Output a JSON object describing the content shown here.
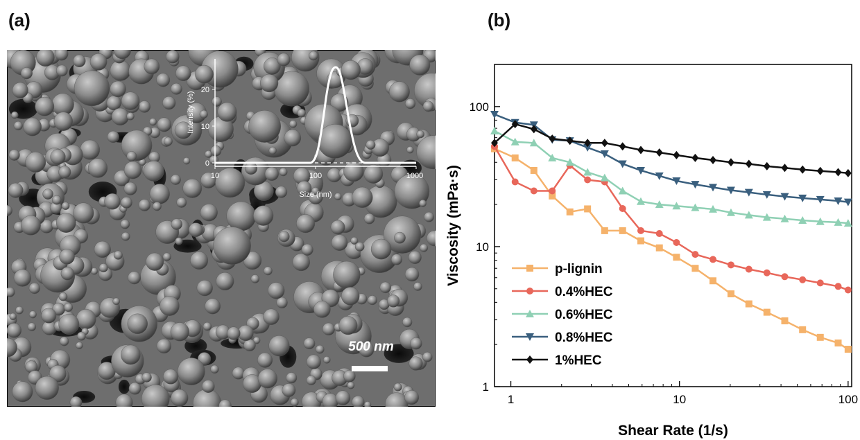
{
  "panels": {
    "a": "(a)",
    "b": "(b)"
  },
  "sem": {
    "scale_bar_label": "500 nm",
    "inset": {
      "xlabel": "Size (nm)",
      "ylabel": "Intensity (%)",
      "x_ticks": [
        "10",
        "100",
        "1000"
      ],
      "y_ticks": [
        "0",
        "10",
        "20"
      ]
    }
  },
  "chart_data": {
    "type": "line",
    "xlabel": "Shear Rate (1/s)",
    "ylabel": "Viscosity (mPa·s)",
    "xscale": "log",
    "yscale": "log",
    "xlim": [
      0.8,
      105
    ],
    "ylim": [
      1,
      200
    ],
    "x_ticks": [
      "1",
      "10",
      "100"
    ],
    "y_ticks": [
      "1",
      "10",
      "100"
    ],
    "legend_position": "bottom-left",
    "x": [
      0.8,
      1.06,
      1.37,
      1.76,
      2.24,
      2.85,
      3.6,
      4.6,
      5.9,
      7.6,
      9.6,
      12.4,
      15.8,
      20.2,
      25.8,
      33,
      42.1,
      53.7,
      68.4,
      87.3,
      100
    ],
    "series": [
      {
        "name": "p-lignin",
        "color": "#f5b26b",
        "marker": "square",
        "values": [
          50,
          43,
          35,
          23,
          17.7,
          18.6,
          13,
          13,
          11,
          9.8,
          8.4,
          7,
          5.7,
          4.6,
          3.9,
          3.4,
          2.95,
          2.55,
          2.25,
          2.05,
          1.85
        ]
      },
      {
        "name": "0.4%HEC",
        "color": "#e8675a",
        "marker": "circle",
        "values": [
          52,
          29,
          25,
          25,
          38,
          30,
          29,
          18.7,
          13,
          12.4,
          10.7,
          8.8,
          8.1,
          7.4,
          6.9,
          6.5,
          6.1,
          5.8,
          5.5,
          5.2,
          4.9
        ]
      },
      {
        "name": "0.6%HEC",
        "color": "#8fd0b4",
        "marker": "triangle-up",
        "values": [
          67,
          56,
          55,
          43,
          40,
          34,
          31,
          25,
          21,
          20,
          19.5,
          19,
          18.5,
          17.5,
          16.8,
          16.2,
          15.8,
          15.4,
          15.1,
          14.9,
          14.7
        ]
      },
      {
        "name": "0.8%HEC",
        "color": "#3a5f7e",
        "marker": "triangle-down",
        "values": [
          88,
          77,
          74,
          58,
          57,
          51,
          46,
          39,
          35,
          32,
          29.5,
          27.8,
          26.5,
          25.3,
          24.4,
          23.5,
          22.8,
          22.2,
          21.7,
          21.2,
          20.8
        ]
      },
      {
        "name": "1%HEC",
        "color": "#111111",
        "marker": "diamond",
        "values": [
          55,
          75,
          69,
          59,
          57,
          55,
          55,
          52,
          49,
          47,
          45,
          43,
          41.5,
          40,
          39,
          37.5,
          36.5,
          35.5,
          34.7,
          34,
          33.5
        ]
      }
    ]
  }
}
